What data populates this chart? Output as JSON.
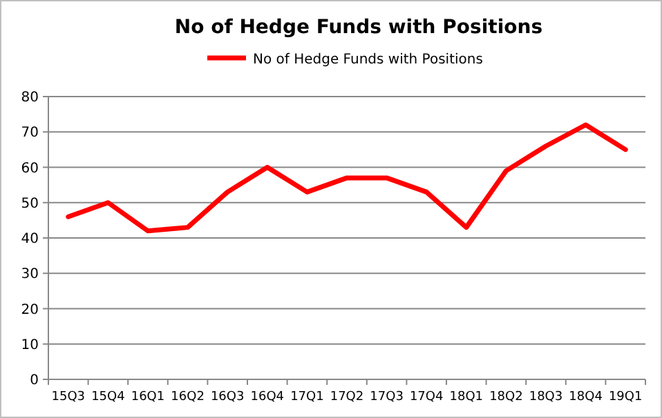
{
  "chart_data": {
    "type": "line",
    "title": "No of Hedge Funds with Positions",
    "categories": [
      "15Q3",
      "15Q4",
      "16Q1",
      "16Q2",
      "16Q3",
      "16Q4",
      "17Q1",
      "17Q2",
      "17Q3",
      "17Q4",
      "18Q1",
      "18Q2",
      "18Q3",
      "18Q4",
      "19Q1"
    ],
    "series": [
      {
        "name": "No of Hedge Funds with Positions",
        "color": "#ff0000",
        "values": [
          46,
          50,
          42,
          43,
          53,
          60,
          53,
          57,
          57,
          53,
          43,
          59,
          66,
          72,
          65
        ]
      }
    ],
    "ylim": [
      0,
      80
    ],
    "yticks": [
      0,
      10,
      20,
      30,
      40,
      50,
      60,
      70,
      80
    ],
    "grid": "y",
    "legend": "top",
    "line_style": "solid",
    "marker": "none"
  }
}
